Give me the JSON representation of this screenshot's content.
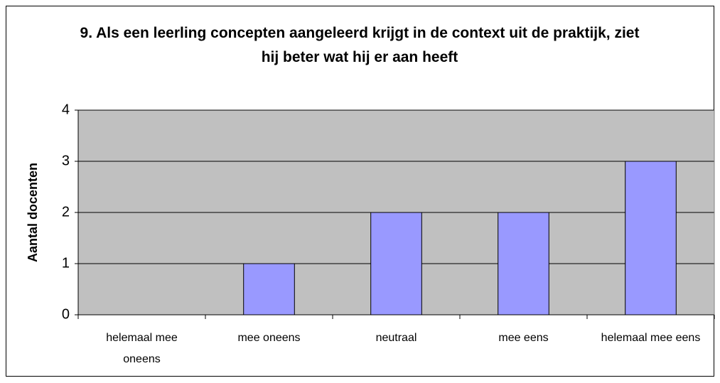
{
  "chart_data": {
    "type": "bar",
    "title": "9. Als een leerling concepten aangeleerd krijgt in de context uit de praktijk, ziet hij beter wat hij er aan heeft",
    "ylabel": "Aantal docenten",
    "categories": [
      "helemaal mee oneens",
      "mee oneens",
      "neutraal",
      "mee eens",
      "helemaal mee eens"
    ],
    "values": [
      0,
      1,
      2,
      2,
      3
    ],
    "color": "#9999ff",
    "ylim": [
      0,
      4
    ],
    "yticks": [
      0,
      1,
      2,
      3,
      4
    ],
    "grid": true
  }
}
